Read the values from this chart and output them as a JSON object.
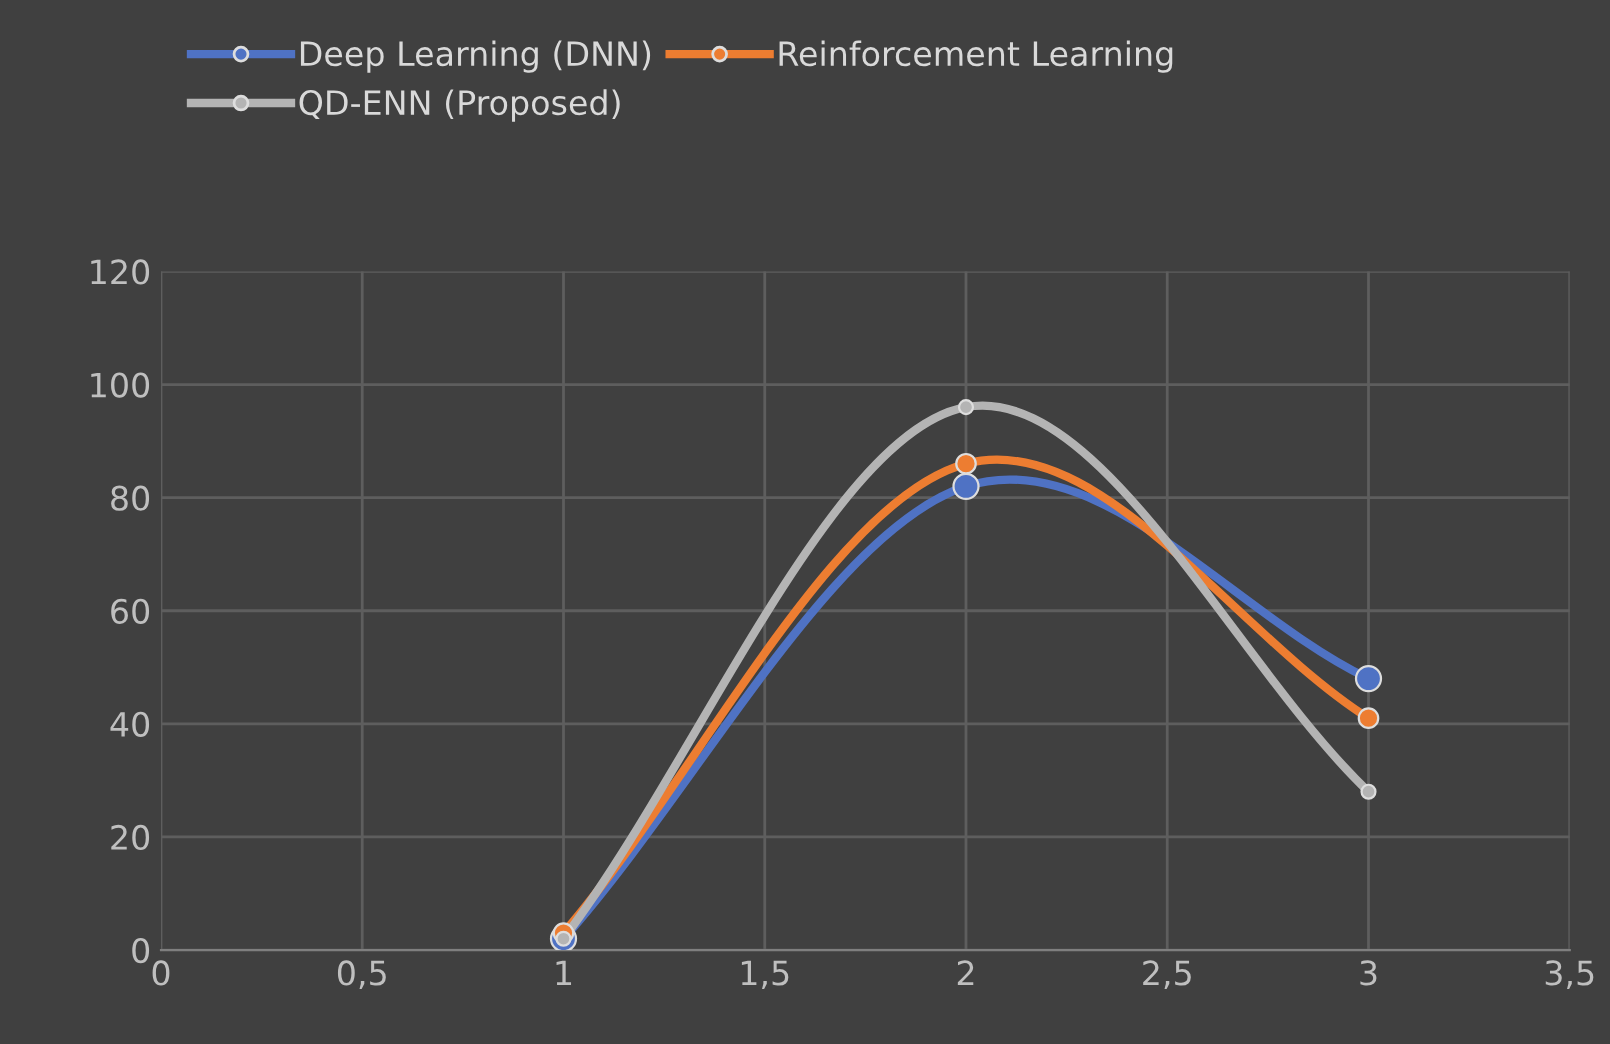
{
  "chart_data": {
    "type": "line",
    "x": [
      1,
      2,
      3
    ],
    "series": [
      {
        "name": "Deep Learning (DNN)",
        "color": "#4f72c4",
        "values": [
          2,
          82,
          48
        ]
      },
      {
        "name": "Reinforcement Learning",
        "color": "#ed7d31",
        "values": [
          3,
          86,
          41
        ]
      },
      {
        "name": "QD-ENN (Proposed)",
        "color": "#b4b4b4",
        "values": [
          2,
          96,
          28
        ]
      }
    ],
    "xlim": [
      0,
      3.5
    ],
    "xticks": [
      0,
      {
        "value": 0.5,
        "label": "0,5"
      },
      1,
      {
        "value": 1.5,
        "label": "1,5"
      },
      2,
      {
        "value": 2.5,
        "label": "2,5"
      },
      3,
      {
        "value": 3.5,
        "label": "3,5"
      }
    ],
    "ylim": [
      0,
      120
    ],
    "yticks": [
      0,
      20,
      40,
      60,
      80,
      100,
      120
    ],
    "grid": true,
    "legend": "top",
    "marker": "circle",
    "line_style": "solid"
  }
}
